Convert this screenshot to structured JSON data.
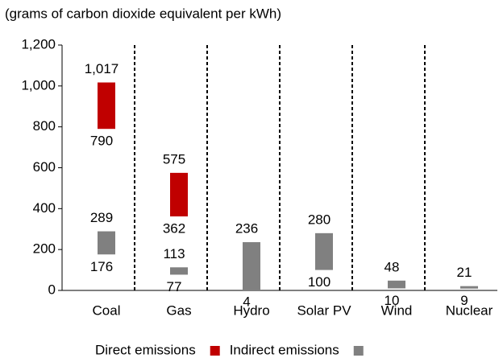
{
  "chart_data": {
    "type": "range-bar",
    "subtitle": "(grams of carbon dioxide equivalent per kWh)",
    "categories": [
      "Coal",
      "Gas",
      "Hydro",
      "Solar PV",
      "Wind",
      "Nuclear"
    ],
    "series": [
      {
        "name": "Direct emissions",
        "color": "#c00000",
        "low": [
          790,
          362,
          null,
          null,
          null,
          null
        ],
        "high": [
          1017,
          575,
          null,
          null,
          null,
          null
        ],
        "high_labels": [
          "1,017",
          "575",
          null,
          null,
          null,
          null
        ]
      },
      {
        "name": "Indirect emissions",
        "color": "#808080",
        "low": [
          176,
          77,
          4,
          100,
          10,
          9
        ],
        "high": [
          289,
          113,
          236,
          280,
          48,
          21
        ]
      }
    ],
    "ylim": [
      0,
      1200
    ],
    "yticks": [
      0,
      200,
      400,
      600,
      800,
      {
        "value": 1000,
        "label": "1,000"
      },
      {
        "value": 1200,
        "label": "1,200"
      }
    ]
  }
}
